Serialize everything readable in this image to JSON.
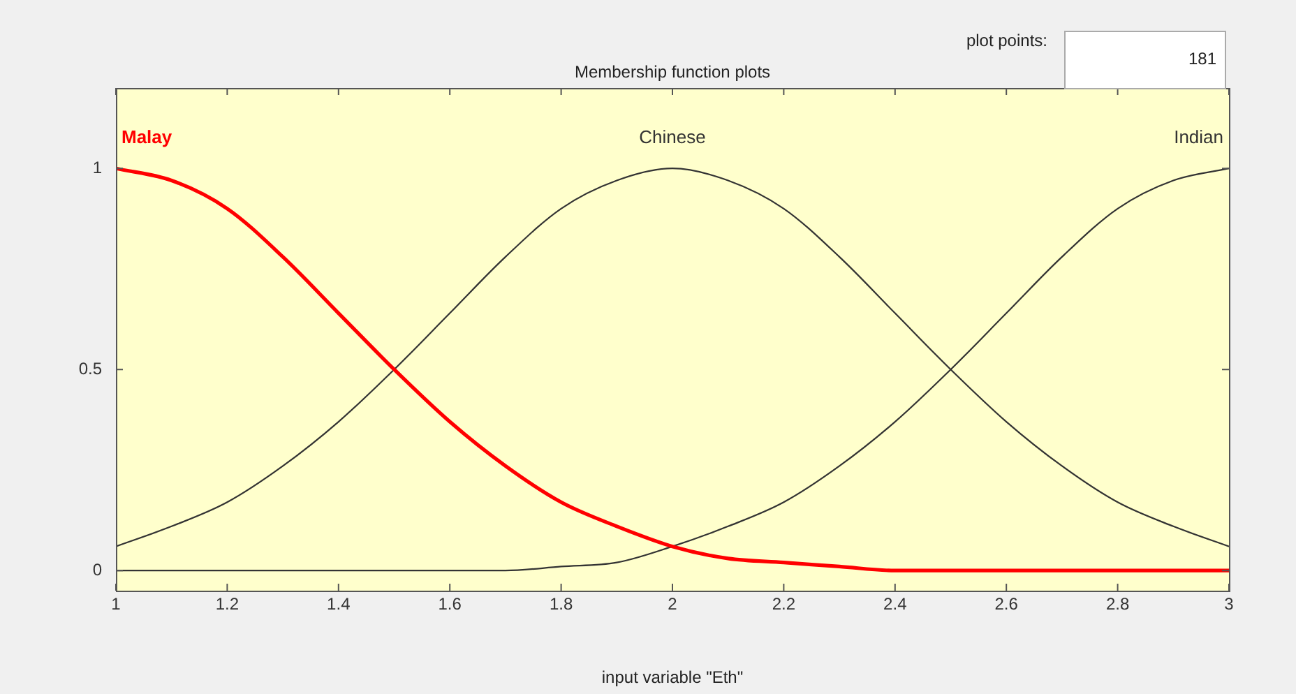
{
  "chart_data": {
    "type": "line",
    "title": "Membership function plots",
    "xlabel": "input variable \"Eth\"",
    "annotations": [
      "plot points:",
      "181"
    ],
    "x": [
      1,
      1.1,
      1.2,
      1.3,
      1.4,
      1.5,
      1.6,
      1.7,
      1.8,
      1.9,
      2,
      2.1,
      2.2,
      2.3,
      2.4,
      2.5,
      2.6,
      2.7,
      2.8,
      2.9,
      3
    ],
    "series": [
      {
        "name": "Malay",
        "color": "#ff0000",
        "values": [
          1,
          0.97,
          0.9,
          0.78,
          0.64,
          0.5,
          0.37,
          0.26,
          0.17,
          0.11,
          0.06,
          0.03,
          0.02,
          0.01,
          0,
          0,
          0,
          0,
          0,
          0,
          0
        ]
      },
      {
        "name": "Chinese",
        "color": "#333333",
        "values": [
          0.06,
          0.11,
          0.17,
          0.26,
          0.37,
          0.5,
          0.64,
          0.78,
          0.9,
          0.97,
          1,
          0.97,
          0.9,
          0.78,
          0.64,
          0.5,
          0.37,
          0.26,
          0.17,
          0.11,
          0.06
        ]
      },
      {
        "name": "Indian",
        "color": "#333333",
        "values": [
          0,
          0,
          0,
          0,
          0,
          0,
          0,
          0,
          0.01,
          0.02,
          0.06,
          0.11,
          0.17,
          0.26,
          0.37,
          0.5,
          0.64,
          0.78,
          0.9,
          0.97,
          1
        ]
      }
    ],
    "xlim": [
      1,
      3
    ],
    "xticks": [
      1,
      1.2,
      1.4,
      1.6,
      1.8,
      2,
      2.2,
      2.4,
      2.6,
      2.8,
      3
    ],
    "ylim": [
      -0.05,
      1.2
    ],
    "yticks": [
      0,
      0.5,
      1
    ],
    "grid": false,
    "legend": false,
    "marker": "none",
    "line_style": "solid"
  }
}
